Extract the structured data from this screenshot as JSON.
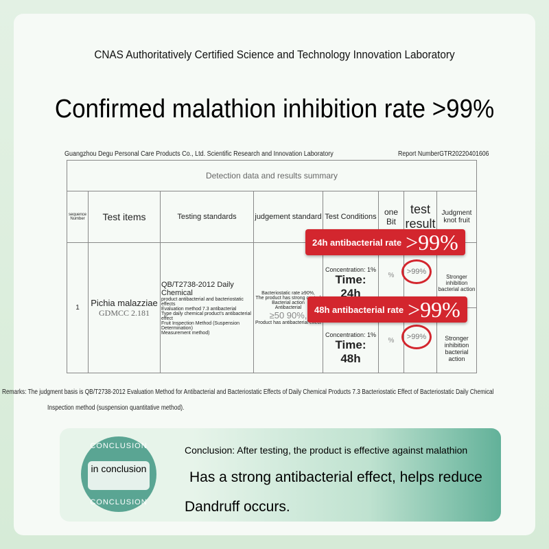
{
  "header": {
    "subtitle": "CNAS Authoritatively Certified Science and Technology Innovation Laboratory",
    "title": "Confirmed malathion inhibition rate >99%"
  },
  "report": {
    "lab": "Guangzhou Degu Personal Care Products Co., Ltd. Scientific Research and Innovation Laboratory",
    "number": "Report NumberGTR20220401606",
    "summary_title": "Detection data and results summary",
    "headers": [
      "sequence Number",
      "Test items",
      "Testing standards",
      "judgement standard",
      "Test Conditions",
      "one Bit",
      "test result",
      "Judgment knot fruit"
    ],
    "row": {
      "seq": "1",
      "item": "Pichia malazziae",
      "item_code": "GDMCC 2.181",
      "standard_title": "QB/T2738-2012 Daily Chemical",
      "standard_lines": [
        "product antibacterial and bacteriostatic effects",
        "Evaluation method 7.3 antibacterial",
        "Type daily chemical product's antibacterial effect",
        "Fruit Inspection Method (Suspension Determination)",
        "Measurement method)"
      ],
      "judgement_lines": [
        "Bacteriostatic rate ≥90%,",
        "The product has strong control",
        "Bacterial action",
        "Antibacterial",
        "≥50 90%,",
        "Product has antibacterial effect"
      ],
      "sub": [
        {
          "concentration": "Concentration: 1%",
          "time": "Time: 24h",
          "unit": "%",
          "result": ">99%",
          "judgment": "Stronger inhibition bacterial action"
        },
        {
          "concentration": "Concentration: 1%",
          "time": "Time: 48h",
          "unit": "%",
          "result": ">99%",
          "judgment": "Stronger inhibition bacterial action"
        }
      ]
    }
  },
  "tags": [
    {
      "label": "24h antibacterial rate",
      "value": ">99%"
    },
    {
      "label": "48h antibacterial rate",
      "value": ">99%"
    }
  ],
  "remarks": [
    "Remarks: The judgment basis is QB/T2738-2012 Evaluation Method for Antibacterial and Bacteriostatic Effects of Daily Chemical Products 7.3 Bacteriostatic Effect of Bacteriostatic Daily Chemical",
    "Inspection method (suspension quantitative method)."
  ],
  "conclusion": {
    "badge_top": "CONCLUSION",
    "badge_text": "in conclusion",
    "badge_bottom": "CONCLUSION",
    "line1": "Conclusion: After testing, the product is effective against malathion",
    "line2": "Has a strong antibacterial effect, helps reduce",
    "line3": "Dandruff occurs."
  },
  "colors": {
    "accent": "#d3262e",
    "teal": "#5aa593"
  }
}
